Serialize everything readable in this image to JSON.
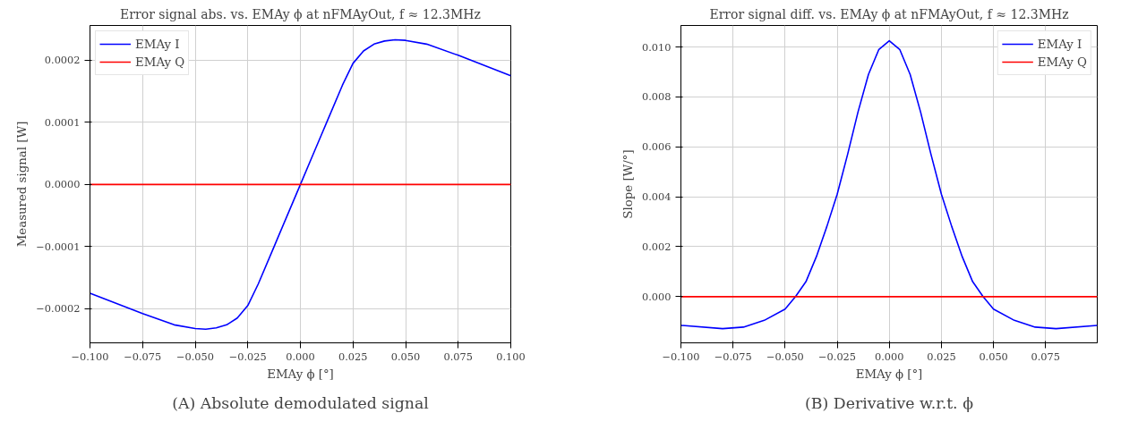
{
  "chart_data": [
    {
      "type": "line",
      "title": "Error signal abs. vs. EMAy ϕ at nFMAyOut, f ≈ 12.3MHz",
      "xlabel": "EMAy ϕ [°]",
      "ylabel": "Measured signal [W]",
      "x": [
        -0.1,
        -0.075,
        -0.06,
        -0.05,
        -0.045,
        -0.04,
        -0.035,
        -0.03,
        -0.025,
        -0.02,
        -0.0125,
        -0.01,
        -0.005,
        0,
        0.005,
        0.01,
        0.0125,
        0.02,
        0.025,
        0.03,
        0.035,
        0.04,
        0.045,
        0.05,
        0.06,
        0.075,
        0.1
      ],
      "series": [
        {
          "name": "EMAy I",
          "color": "#0000ff",
          "values": [
            -0.000175,
            -0.000208,
            -0.000226,
            -0.000232,
            -0.000233,
            -0.000231,
            -0.000226,
            -0.000215,
            -0.000195,
            -0.00016,
            -0.0001,
            -8e-05,
            -4e-05,
            0,
            4e-05,
            8e-05,
            0.0001,
            0.00016,
            0.000195,
            0.000215,
            0.000226,
            0.000231,
            0.000233,
            0.000232,
            0.000226,
            0.000208,
            0.000175
          ]
        },
        {
          "name": "EMAy Q",
          "color": "#ff0000",
          "values": [
            0,
            0,
            0,
            0,
            0,
            0,
            0,
            0,
            0,
            0,
            0,
            0,
            0,
            0,
            0,
            0,
            0,
            0,
            0,
            0,
            0,
            0,
            0,
            0,
            0,
            0,
            0
          ]
        }
      ],
      "xlim": [
        -0.1,
        0.1
      ],
      "ylim": [
        -0.000255,
        0.000256
      ],
      "xticks": [
        {
          "value": -0.1,
          "label": "−0.100"
        },
        {
          "value": -0.075,
          "label": "−0.075"
        },
        {
          "value": -0.05,
          "label": "−0.050"
        },
        {
          "value": -0.025,
          "label": "−0.025"
        },
        {
          "value": 0,
          "label": "0.000"
        },
        {
          "value": 0.025,
          "label": "0.025"
        },
        {
          "value": 0.05,
          "label": "0.050"
        },
        {
          "value": 0.075,
          "label": "0.075"
        },
        {
          "value": 0.1,
          "label": "0.100"
        }
      ],
      "yticks": [
        {
          "value": -0.0002,
          "label": "−0.0002"
        },
        {
          "value": -0.0001,
          "label": "−0.0001"
        },
        {
          "value": 0,
          "label": "0.0000"
        },
        {
          "value": 0.0001,
          "label": "0.0001"
        },
        {
          "value": 0.0002,
          "label": "0.0002"
        }
      ],
      "grid": true,
      "legend": "top left",
      "annotations": [
        "(A) Absolute demodulated signal"
      ]
    },
    {
      "type": "line",
      "title": "Error signal diff. vs. EMAy ϕ at nFMAyOut, f ≈ 12.3MHz",
      "xlabel": "EMAy ϕ [°]",
      "ylabel": "Slope [W/°]",
      "x": [
        -0.1,
        -0.08,
        -0.07,
        -0.06,
        -0.05,
        -0.045,
        -0.04,
        -0.035,
        -0.03,
        -0.025,
        -0.02,
        -0.015,
        -0.01,
        -0.005,
        0,
        0.005,
        0.01,
        0.015,
        0.02,
        0.025,
        0.03,
        0.035,
        0.04,
        0.045,
        0.05,
        0.06,
        0.07,
        0.08,
        0.0998
      ],
      "series": [
        {
          "name": "EMAy I",
          "color": "#0000ff",
          "values": [
            -0.00115,
            -0.00128,
            -0.00122,
            -0.00095,
            -0.0005,
            0,
            0.0006,
            0.0016,
            0.0028,
            0.0041,
            0.0057,
            0.0074,
            0.0089,
            0.0099,
            0.01025,
            0.0099,
            0.0089,
            0.0074,
            0.0057,
            0.0041,
            0.0028,
            0.0016,
            0.0006,
            0,
            -0.0005,
            -0.00095,
            -0.00122,
            -0.00128,
            -0.00115
          ]
        },
        {
          "name": "EMAy Q",
          "color": "#ff0000",
          "values": [
            0,
            0,
            0,
            0,
            0,
            0,
            0,
            0,
            0,
            0,
            0,
            0,
            0,
            0,
            0,
            0,
            0,
            0,
            0,
            0,
            0,
            0,
            0,
            0,
            0,
            0,
            0,
            0,
            0
          ]
        }
      ],
      "xlim": [
        -0.1,
        0.0998
      ],
      "ylim": [
        -0.00185,
        0.01086
      ],
      "xticks": [
        {
          "value": -0.1,
          "label": "−0.100"
        },
        {
          "value": -0.075,
          "label": "−0.075"
        },
        {
          "value": -0.05,
          "label": "−0.050"
        },
        {
          "value": -0.025,
          "label": "−0.025"
        },
        {
          "value": 0,
          "label": "0.000"
        },
        {
          "value": 0.025,
          "label": "0.025"
        },
        {
          "value": 0.05,
          "label": "0.050"
        },
        {
          "value": 0.075,
          "label": "0.075"
        }
      ],
      "yticks": [
        {
          "value": 0,
          "label": "0.000"
        },
        {
          "value": 0.002,
          "label": "0.002"
        },
        {
          "value": 0.004,
          "label": "0.004"
        },
        {
          "value": 0.006,
          "label": "0.006"
        },
        {
          "value": 0.008,
          "label": "0.008"
        },
        {
          "value": 0.01,
          "label": "0.010"
        }
      ],
      "grid": true,
      "legend": "top right",
      "annotations": [
        "(B) Derivative w.r.t. ϕ"
      ]
    }
  ]
}
